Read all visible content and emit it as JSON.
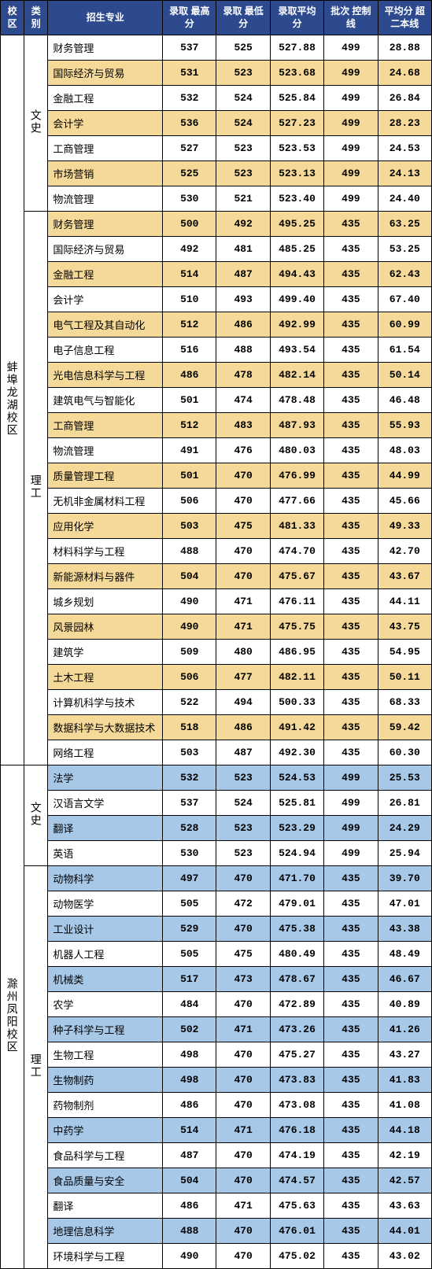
{
  "header": {
    "campus": "校区",
    "category": "类别",
    "major": "招生专业",
    "max": "录取\n最高分",
    "min": "录取\n最低分",
    "avg": "录取平均分",
    "ctrl": "批次\n控制线",
    "diff": "平均分\n超二本线"
  },
  "colors": {
    "header_bg": "#2d4a8f",
    "header_fg": "#ffffff",
    "hl_yellow": "#f5d999",
    "hl_blue": "#a8c8e8",
    "border": "#000000"
  },
  "groups": [
    {
      "campus": "蚌埠龙湖校区",
      "blocks": [
        {
          "category": "文史",
          "rows": [
            {
              "hl": "",
              "major": "财务管理",
              "max": "537",
              "min": "525",
              "avg": "527.88",
              "ctrl": "499",
              "diff": "28.88"
            },
            {
              "hl": "yellow",
              "major": "国际经济与贸易",
              "max": "531",
              "min": "523",
              "avg": "523.68",
              "ctrl": "499",
              "diff": "24.68"
            },
            {
              "hl": "",
              "major": "金融工程",
              "max": "532",
              "min": "524",
              "avg": "525.84",
              "ctrl": "499",
              "diff": "26.84"
            },
            {
              "hl": "yellow",
              "major": "会计学",
              "max": "536",
              "min": "524",
              "avg": "527.23",
              "ctrl": "499",
              "diff": "28.23"
            },
            {
              "hl": "",
              "major": "工商管理",
              "max": "527",
              "min": "523",
              "avg": "523.53",
              "ctrl": "499",
              "diff": "24.53"
            },
            {
              "hl": "yellow",
              "major": "市场营销",
              "max": "525",
              "min": "523",
              "avg": "523.13",
              "ctrl": "499",
              "diff": "24.13"
            },
            {
              "hl": "",
              "major": "物流管理",
              "max": "530",
              "min": "521",
              "avg": "523.40",
              "ctrl": "499",
              "diff": "24.40"
            }
          ]
        },
        {
          "category": "理工",
          "rows": [
            {
              "hl": "yellow",
              "major": "财务管理",
              "max": "500",
              "min": "492",
              "avg": "495.25",
              "ctrl": "435",
              "diff": "63.25"
            },
            {
              "hl": "",
              "major": "国际经济与贸易",
              "max": "492",
              "min": "481",
              "avg": "485.25",
              "ctrl": "435",
              "diff": "53.25"
            },
            {
              "hl": "yellow",
              "major": "金融工程",
              "max": "514",
              "min": "487",
              "avg": "494.43",
              "ctrl": "435",
              "diff": "62.43"
            },
            {
              "hl": "",
              "major": "会计学",
              "max": "510",
              "min": "493",
              "avg": "499.40",
              "ctrl": "435",
              "diff": "67.40"
            },
            {
              "hl": "yellow",
              "major": "电气工程及其自动化",
              "max": "512",
              "min": "486",
              "avg": "492.99",
              "ctrl": "435",
              "diff": "60.99"
            },
            {
              "hl": "",
              "major": "电子信息工程",
              "max": "516",
              "min": "488",
              "avg": "493.54",
              "ctrl": "435",
              "diff": "61.54"
            },
            {
              "hl": "yellow",
              "major": "光电信息科学与工程",
              "max": "486",
              "min": "478",
              "avg": "482.14",
              "ctrl": "435",
              "diff": "50.14"
            },
            {
              "hl": "",
              "major": "建筑电气与智能化",
              "max": "501",
              "min": "474",
              "avg": "478.48",
              "ctrl": "435",
              "diff": "46.48"
            },
            {
              "hl": "yellow",
              "major": "工商管理",
              "max": "512",
              "min": "483",
              "avg": "487.93",
              "ctrl": "435",
              "diff": "55.93"
            },
            {
              "hl": "",
              "major": "物流管理",
              "max": "491",
              "min": "476",
              "avg": "480.03",
              "ctrl": "435",
              "diff": "48.03"
            },
            {
              "hl": "yellow",
              "major": "质量管理工程",
              "max": "501",
              "min": "470",
              "avg": "476.99",
              "ctrl": "435",
              "diff": "44.99"
            },
            {
              "hl": "",
              "major": "无机非金属材料工程",
              "max": "506",
              "min": "470",
              "avg": "477.66",
              "ctrl": "435",
              "diff": "45.66"
            },
            {
              "hl": "yellow",
              "major": "应用化学",
              "max": "503",
              "min": "475",
              "avg": "481.33",
              "ctrl": "435",
              "diff": "49.33"
            },
            {
              "hl": "",
              "major": "材料科学与工程",
              "max": "488",
              "min": "470",
              "avg": "474.70",
              "ctrl": "435",
              "diff": "42.70"
            },
            {
              "hl": "yellow",
              "major": "新能源材料与器件",
              "max": "504",
              "min": "470",
              "avg": "475.67",
              "ctrl": "435",
              "diff": "43.67"
            },
            {
              "hl": "",
              "major": "城乡规划",
              "max": "490",
              "min": "471",
              "avg": "476.11",
              "ctrl": "435",
              "diff": "44.11"
            },
            {
              "hl": "yellow",
              "major": "风景园林",
              "max": "490",
              "min": "471",
              "avg": "475.75",
              "ctrl": "435",
              "diff": "43.75"
            },
            {
              "hl": "",
              "major": "建筑学",
              "max": "509",
              "min": "480",
              "avg": "486.95",
              "ctrl": "435",
              "diff": "54.95"
            },
            {
              "hl": "yellow",
              "major": "土木工程",
              "max": "506",
              "min": "477",
              "avg": "482.11",
              "ctrl": "435",
              "diff": "50.11"
            },
            {
              "hl": "",
              "major": "计算机科学与技术",
              "max": "522",
              "min": "494",
              "avg": "500.33",
              "ctrl": "435",
              "diff": "68.33"
            },
            {
              "hl": "yellow",
              "major": "数据科学与大数据技术",
              "max": "518",
              "min": "486",
              "avg": "491.42",
              "ctrl": "435",
              "diff": "59.42"
            },
            {
              "hl": "",
              "major": "网络工程",
              "max": "503",
              "min": "487",
              "avg": "492.30",
              "ctrl": "435",
              "diff": "60.30"
            }
          ]
        }
      ]
    },
    {
      "campus": "滁州凤阳校区",
      "blocks": [
        {
          "category": "文史",
          "rows": [
            {
              "hl": "blue",
              "major": "法学",
              "max": "532",
              "min": "523",
              "avg": "524.53",
              "ctrl": "499",
              "diff": "25.53"
            },
            {
              "hl": "",
              "major": "汉语言文学",
              "max": "537",
              "min": "524",
              "avg": "525.81",
              "ctrl": "499",
              "diff": "26.81"
            },
            {
              "hl": "blue",
              "major": "翻译",
              "max": "528",
              "min": "523",
              "avg": "523.29",
              "ctrl": "499",
              "diff": "24.29"
            },
            {
              "hl": "",
              "major": "英语",
              "max": "530",
              "min": "523",
              "avg": "524.94",
              "ctrl": "499",
              "diff": "25.94"
            }
          ]
        },
        {
          "category": "理工",
          "rows": [
            {
              "hl": "blue",
              "major": "动物科学",
              "max": "497",
              "min": "470",
              "avg": "471.70",
              "ctrl": "435",
              "diff": "39.70"
            },
            {
              "hl": "",
              "major": "动物医学",
              "max": "505",
              "min": "472",
              "avg": "479.01",
              "ctrl": "435",
              "diff": "47.01"
            },
            {
              "hl": "blue",
              "major": "工业设计",
              "max": "529",
              "min": "470",
              "avg": "475.38",
              "ctrl": "435",
              "diff": "43.38"
            },
            {
              "hl": "",
              "major": "机器人工程",
              "max": "505",
              "min": "475",
              "avg": "480.49",
              "ctrl": "435",
              "diff": "48.49"
            },
            {
              "hl": "blue",
              "major": "机械类",
              "max": "517",
              "min": "473",
              "avg": "478.67",
              "ctrl": "435",
              "diff": "46.67"
            },
            {
              "hl": "",
              "major": "农学",
              "max": "484",
              "min": "470",
              "avg": "472.89",
              "ctrl": "435",
              "diff": "40.89"
            },
            {
              "hl": "blue",
              "major": "种子科学与工程",
              "max": "502",
              "min": "471",
              "avg": "473.26",
              "ctrl": "435",
              "diff": "41.26"
            },
            {
              "hl": "",
              "major": "生物工程",
              "max": "498",
              "min": "470",
              "avg": "475.27",
              "ctrl": "435",
              "diff": "43.27"
            },
            {
              "hl": "blue",
              "major": "生物制药",
              "max": "498",
              "min": "470",
              "avg": "473.83",
              "ctrl": "435",
              "diff": "41.83"
            },
            {
              "hl": "",
              "major": "药物制剂",
              "max": "486",
              "min": "470",
              "avg": "473.08",
              "ctrl": "435",
              "diff": "41.08"
            },
            {
              "hl": "blue",
              "major": "中药学",
              "max": "514",
              "min": "471",
              "avg": "476.18",
              "ctrl": "435",
              "diff": "44.18"
            },
            {
              "hl": "",
              "major": "食品科学与工程",
              "max": "487",
              "min": "470",
              "avg": "474.19",
              "ctrl": "435",
              "diff": "42.19"
            },
            {
              "hl": "blue",
              "major": "食品质量与安全",
              "max": "504",
              "min": "470",
              "avg": "474.57",
              "ctrl": "435",
              "diff": "42.57"
            },
            {
              "hl": "",
              "major": "翻译",
              "max": "486",
              "min": "471",
              "avg": "475.63",
              "ctrl": "435",
              "diff": "43.63"
            },
            {
              "hl": "blue",
              "major": "地理信息科学",
              "max": "488",
              "min": "470",
              "avg": "476.01",
              "ctrl": "435",
              "diff": "44.01"
            },
            {
              "hl": "",
              "major": "环境科学与工程",
              "max": "490",
              "min": "470",
              "avg": "475.02",
              "ctrl": "435",
              "diff": "43.02"
            }
          ]
        }
      ]
    }
  ]
}
